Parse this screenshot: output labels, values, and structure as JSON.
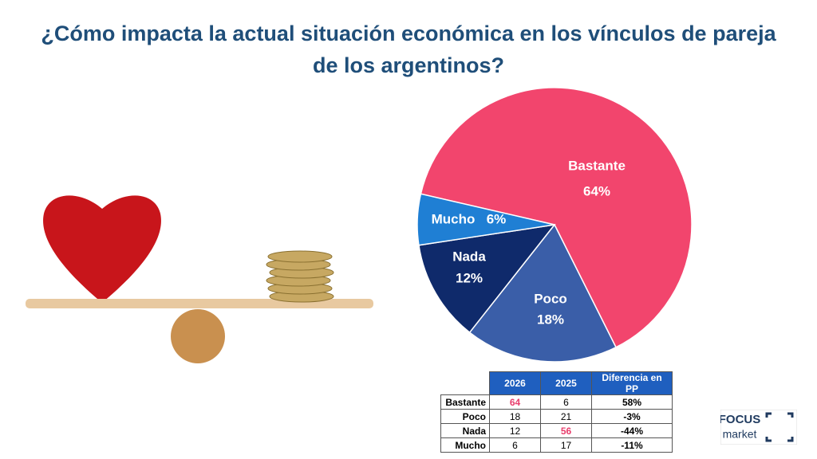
{
  "chart_data": {
    "type": "pie",
    "title": "¿Cómo impacta la actual situación económica en los vínculos de pareja de los argentinos?",
    "categories": [
      "Bastante",
      "Poco",
      "Nada",
      "Mucho"
    ],
    "values": [
      64,
      18,
      12,
      6
    ],
    "value_labels": [
      "64%",
      "18%",
      "12%",
      "6%"
    ],
    "colors": [
      "#f2456d",
      "#3a5ea8",
      "#0f2a6b",
      "#1f7fd4"
    ]
  },
  "table": {
    "columns": [
      "2026",
      "2025",
      "Diferencia en PP"
    ],
    "rows": [
      [
        "Bastante",
        "64",
        "6",
        "58%"
      ],
      [
        "Poco",
        "18",
        "21",
        "-3%"
      ],
      [
        "Nada",
        "12",
        "56",
        "-44%"
      ],
      [
        "Mucho",
        "6",
        "17",
        "-11%"
      ]
    ]
  },
  "logo": {
    "brand": "FOCUS",
    "sub": "market"
  }
}
